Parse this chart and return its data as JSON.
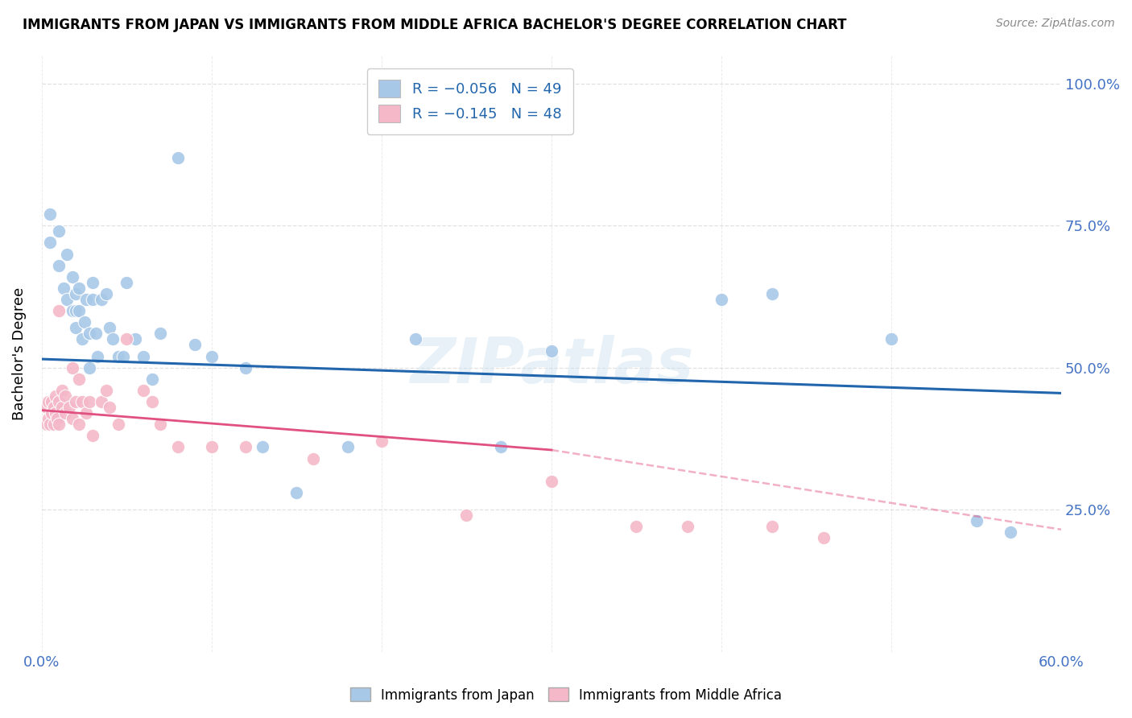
{
  "title": "IMMIGRANTS FROM JAPAN VS IMMIGRANTS FROM MIDDLE AFRICA BACHELOR'S DEGREE CORRELATION CHART",
  "source": "Source: ZipAtlas.com",
  "ylabel": "Bachelor's Degree",
  "xlim": [
    0.0,
    0.6
  ],
  "ylim": [
    0.0,
    1.05
  ],
  "legend_r1": "R = -0.056",
  "legend_n1": "N = 49",
  "legend_r2": "R = -0.145",
  "legend_n2": "N = 48",
  "watermark": "ZIPatlas",
  "blue_color": "#a8c8e8",
  "pink_color": "#f4b8c8",
  "blue_line_color": "#2166ac",
  "pink_line_color": "#e05080",
  "japan_x": [
    0.005,
    0.005,
    0.01,
    0.01,
    0.013,
    0.015,
    0.015,
    0.018,
    0.018,
    0.02,
    0.02,
    0.02,
    0.022,
    0.022,
    0.024,
    0.025,
    0.026,
    0.028,
    0.028,
    0.03,
    0.03,
    0.032,
    0.033,
    0.035,
    0.038,
    0.04,
    0.042,
    0.045,
    0.048,
    0.05,
    0.055,
    0.06,
    0.065,
    0.07,
    0.08,
    0.09,
    0.1,
    0.12,
    0.13,
    0.15,
    0.18,
    0.22,
    0.27,
    0.3,
    0.4,
    0.43,
    0.5,
    0.55,
    0.57
  ],
  "japan_y": [
    0.72,
    0.77,
    0.68,
    0.74,
    0.64,
    0.62,
    0.7,
    0.6,
    0.66,
    0.63,
    0.6,
    0.57,
    0.64,
    0.6,
    0.55,
    0.58,
    0.62,
    0.56,
    0.5,
    0.65,
    0.62,
    0.56,
    0.52,
    0.62,
    0.63,
    0.57,
    0.55,
    0.52,
    0.52,
    0.65,
    0.55,
    0.52,
    0.48,
    0.56,
    0.87,
    0.54,
    0.52,
    0.5,
    0.36,
    0.28,
    0.36,
    0.55,
    0.36,
    0.53,
    0.62,
    0.63,
    0.55,
    0.23,
    0.21
  ],
  "africa_x": [
    0.003,
    0.003,
    0.004,
    0.004,
    0.005,
    0.006,
    0.006,
    0.007,
    0.007,
    0.008,
    0.008,
    0.009,
    0.01,
    0.01,
    0.01,
    0.012,
    0.012,
    0.014,
    0.014,
    0.016,
    0.018,
    0.018,
    0.02,
    0.022,
    0.022,
    0.024,
    0.026,
    0.028,
    0.03,
    0.035,
    0.038,
    0.04,
    0.045,
    0.05,
    0.06,
    0.065,
    0.07,
    0.08,
    0.1,
    0.12,
    0.16,
    0.2,
    0.25,
    0.3,
    0.35,
    0.38,
    0.43,
    0.46
  ],
  "africa_y": [
    0.4,
    0.43,
    0.41,
    0.44,
    0.4,
    0.42,
    0.44,
    0.4,
    0.43,
    0.42,
    0.45,
    0.41,
    0.4,
    0.44,
    0.6,
    0.43,
    0.46,
    0.42,
    0.45,
    0.43,
    0.41,
    0.5,
    0.44,
    0.4,
    0.48,
    0.44,
    0.42,
    0.44,
    0.38,
    0.44,
    0.46,
    0.43,
    0.4,
    0.55,
    0.46,
    0.44,
    0.4,
    0.36,
    0.36,
    0.36,
    0.34,
    0.37,
    0.24,
    0.3,
    0.22,
    0.22,
    0.22,
    0.2
  ],
  "japan_trend": [
    0.0,
    0.6,
    0.515,
    0.455
  ],
  "africa_trend_solid": [
    0.0,
    0.3,
    0.425,
    0.355
  ],
  "africa_trend_dash": [
    0.3,
    0.6,
    0.355,
    0.215
  ]
}
